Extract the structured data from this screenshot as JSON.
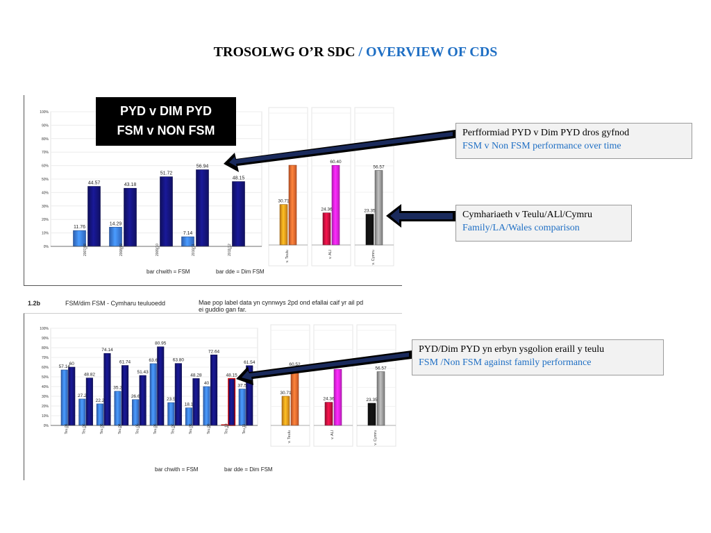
{
  "slide": {
    "title_cy": "TROSOLWG O’R SDC",
    "title_sep": " / ",
    "title_en": "OVERVIEW OF CDS"
  },
  "badge": {
    "line1": "PYD v DIM PYD",
    "line2": "FSM v NON FSM"
  },
  "callouts": [
    {
      "cy": "Perfformiad PYD v Dim PYD dros gyfnod",
      "en": "FSM v Non FSM performance over time"
    },
    {
      "cy": "Cymhariaeth v Teulu/ALl/Cymru",
      "en": "Family/LA/Wales comparison"
    },
    {
      "cy": "PYD/Dim PYD  yn erbyn ysgolion eraill y teulu",
      "en": "FSM /Non FSM against family performance"
    }
  ],
  "panel2_header": {
    "code": "1.2b",
    "title": "FSM/dim FSM - Cymharu teuluoedd",
    "note_line1": "Mae pop label data yn cynnwys 2pd ond efallai caif yr ail pd",
    "note_line2": "ei guddio gan far."
  },
  "footers": {
    "left": "bar chwith = FSM",
    "right": "bar dde = Dim FSM"
  },
  "colors": {
    "fsm": "#3b7de8",
    "nonfsm": "#14147a",
    "teulu": "#f59a1c",
    "all": "#c8103e",
    "cymru": "#111111",
    "teulu_dde": "#f26a30",
    "all_dde": "#ee22ee",
    "cymru_dde": "#9a9a9a",
    "title_en": "#1f6fc4"
  },
  "chart_data": [
    {
      "type": "bar",
      "ylim": [
        0,
        100
      ],
      "yticks": [
        "0%",
        "10%",
        "20%",
        "30%",
        "40%",
        "50%",
        "60%",
        "70%",
        "80%",
        "90%",
        "100%"
      ],
      "categories": [
        "2007/08",
        "2008/09",
        "2009/10",
        "2010/11",
        "2011/12"
      ],
      "series": [
        {
          "values": [
            11.76,
            14.29,
            null,
            7.14,
            null
          ]
        },
        {
          "values": [
            44.57,
            43.18,
            51.72,
            56.94,
            48.15
          ]
        }
      ],
      "labels": [
        [
          "11.76",
          "44.57"
        ],
        [
          "14.29",
          "43.18"
        ],
        [
          "",
          "51.72"
        ],
        [
          "7.14",
          "56.94"
        ],
        [
          "",
          "48.15"
        ]
      ],
      "legend": "bottom"
    },
    {
      "type": "bar",
      "ylim": [
        0,
        100
      ],
      "categories": [
        "v. Teulu",
        "v. ALl",
        "v. Cymru"
      ],
      "series": [
        {
          "values": [
            30.71,
            24.36,
            23.35
          ]
        },
        {
          "values": [
            60.5,
            60.4,
            56.57
          ]
        }
      ],
      "labels": [
        [
          "30.71",
          ""
        ],
        [
          "24.36",
          "60.40"
        ],
        [
          "23.35",
          "56.57"
        ]
      ]
    },
    {
      "type": "bar",
      "ylim": [
        0,
        100
      ],
      "yticks": [
        "0%",
        "10%",
        "20%",
        "30%",
        "40%",
        "50%",
        "60%",
        "70%",
        "80%",
        "90%",
        "100%"
      ],
      "categories": [
        "Teu.01",
        "Teu.02",
        "Teu.03",
        "Teu.04",
        "Teu.05",
        "Teu.06",
        "Teu.07",
        "Teu.08",
        "Teu.09",
        "Teu.10",
        "Teu.11"
      ],
      "series": [
        {
          "values": [
            57.14,
            27.2,
            22.2,
            35.2,
            26.6,
            63.6,
            23.5,
            18.1,
            40,
            0,
            37.5
          ]
        },
        {
          "values": [
            60,
            48.82,
            74.14,
            61.74,
            51.43,
            80.95,
            63.8,
            48.28,
            72.64,
            48.15,
            61.54
          ]
        }
      ],
      "labels": [
        [
          "57.14",
          "60"
        ],
        [
          "27.2",
          "48.82"
        ],
        [
          "22.2",
          "74.14"
        ],
        [
          "35.2",
          "61.74"
        ],
        [
          "26.6",
          "51.43"
        ],
        [
          "63.6",
          "80.95"
        ],
        [
          "23.5",
          "63.80"
        ],
        [
          "18.1",
          "48.28"
        ],
        [
          "40",
          "72.64"
        ],
        [
          "",
          "48.15"
        ],
        [
          "37.5",
          "61.54"
        ]
      ],
      "legend": "bottom"
    },
    {
      "type": "bar",
      "ylim": [
        0,
        100
      ],
      "categories": [
        "v. Teulu",
        "v. ALl",
        "v. Cymru"
      ],
      "series": [
        {
          "values": [
            30.71,
            24.36,
            23.35
          ]
        },
        {
          "values": [
            60.52,
            59,
            56.57
          ]
        }
      ],
      "labels": [
        [
          "30.71",
          "60.52"
        ],
        [
          "24.36",
          ""
        ],
        [
          "23.35",
          "56.57"
        ]
      ]
    }
  ]
}
